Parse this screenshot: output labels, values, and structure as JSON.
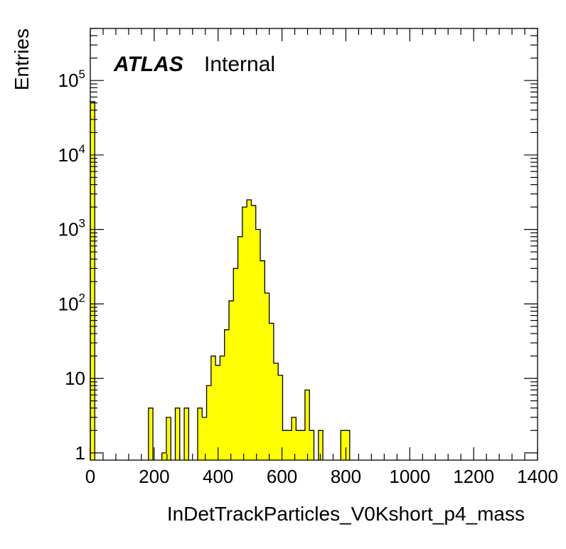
{
  "chart_data": {
    "type": "bar",
    "xlabel": "InDetTrackParticles_V0Kshort_p4_mass",
    "ylabel": "Entries",
    "xlim": [
      0,
      1400
    ],
    "ylim": [
      0.8,
      500000
    ],
    "yscale": "log",
    "xticks": [
      0,
      200,
      400,
      600,
      800,
      1000,
      1200,
      1400
    ],
    "yticks": [
      {
        "value": 1,
        "label": "1",
        "sup": ""
      },
      {
        "value": 10,
        "label": "10",
        "sup": ""
      },
      {
        "value": 100,
        "label": "10",
        "sup": "2"
      },
      {
        "value": 1000,
        "label": "10",
        "sup": "3"
      },
      {
        "value": 10000,
        "label": "10",
        "sup": "4"
      },
      {
        "value": 100000,
        "label": "10",
        "sup": "5"
      }
    ],
    "bin_width": 14,
    "bins": [
      {
        "x": 0,
        "y": 52000
      },
      {
        "x": 182,
        "y": 4
      },
      {
        "x": 224,
        "y": 1
      },
      {
        "x": 238,
        "y": 3
      },
      {
        "x": 266,
        "y": 4
      },
      {
        "x": 294,
        "y": 4
      },
      {
        "x": 336,
        "y": 4
      },
      {
        "x": 350,
        "y": 3
      },
      {
        "x": 364,
        "y": 8
      },
      {
        "x": 378,
        "y": 20
      },
      {
        "x": 392,
        "y": 15
      },
      {
        "x": 406,
        "y": 20
      },
      {
        "x": 420,
        "y": 45
      },
      {
        "x": 434,
        "y": 110
      },
      {
        "x": 448,
        "y": 300
      },
      {
        "x": 462,
        "y": 800
      },
      {
        "x": 476,
        "y": 2000
      },
      {
        "x": 490,
        "y": 2500
      },
      {
        "x": 504,
        "y": 2100
      },
      {
        "x": 518,
        "y": 1000
      },
      {
        "x": 532,
        "y": 380
      },
      {
        "x": 546,
        "y": 140
      },
      {
        "x": 560,
        "y": 55
      },
      {
        "x": 574,
        "y": 16
      },
      {
        "x": 588,
        "y": 11
      },
      {
        "x": 602,
        "y": 2
      },
      {
        "x": 616,
        "y": 2
      },
      {
        "x": 630,
        "y": 3
      },
      {
        "x": 644,
        "y": 2
      },
      {
        "x": 658,
        "y": 2
      },
      {
        "x": 672,
        "y": 7
      },
      {
        "x": 686,
        "y": 2
      },
      {
        "x": 714,
        "y": 2
      },
      {
        "x": 784,
        "y": 2
      },
      {
        "x": 798,
        "y": 2
      }
    ],
    "fill_color": "#ffff00",
    "edge_color": "#000000",
    "grid": false,
    "label_main": "ATLAS",
    "label_sub": "Internal"
  }
}
